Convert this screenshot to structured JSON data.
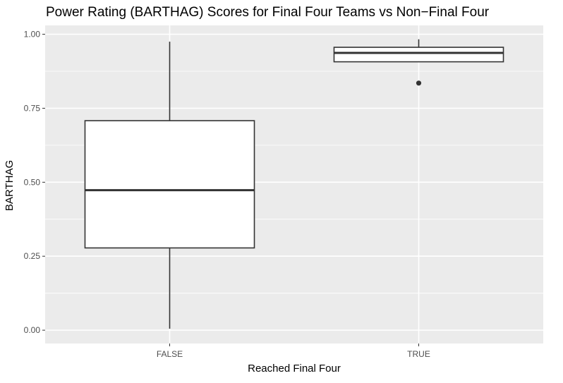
{
  "chart_data": {
    "type": "boxplot",
    "title": "Power Rating (BARTHAG) Scores for Final Four Teams vs Non−Final Four",
    "xlabel": "Reached Final Four",
    "ylabel": "BARTHAG",
    "categories": [
      "FALSE",
      "TRUE"
    ],
    "ylim": [
      -0.045,
      1.03
    ],
    "yticks": [
      0.0,
      0.25,
      0.5,
      0.75,
      1.0
    ],
    "ytick_labels": [
      "0.00",
      "0.25",
      "0.50",
      "0.75",
      "1.00"
    ],
    "grid": true,
    "legend": "none",
    "colors": {
      "panel_background": "#ebebeb",
      "gridline": "#ffffff",
      "box_fill": "#ffffff",
      "box_stroke": "#333333",
      "tick_label": "#4d4d4d"
    },
    "boxes": [
      {
        "category": "FALSE",
        "whisker_low": 0.005,
        "q1": 0.278,
        "median": 0.473,
        "q3": 0.708,
        "whisker_high": 0.975,
        "outliers": []
      },
      {
        "category": "TRUE",
        "whisker_low": 0.907,
        "q1": 0.907,
        "median": 0.937,
        "q3": 0.956,
        "whisker_high": 0.983,
        "outliers": [
          0.835
        ]
      }
    ]
  }
}
